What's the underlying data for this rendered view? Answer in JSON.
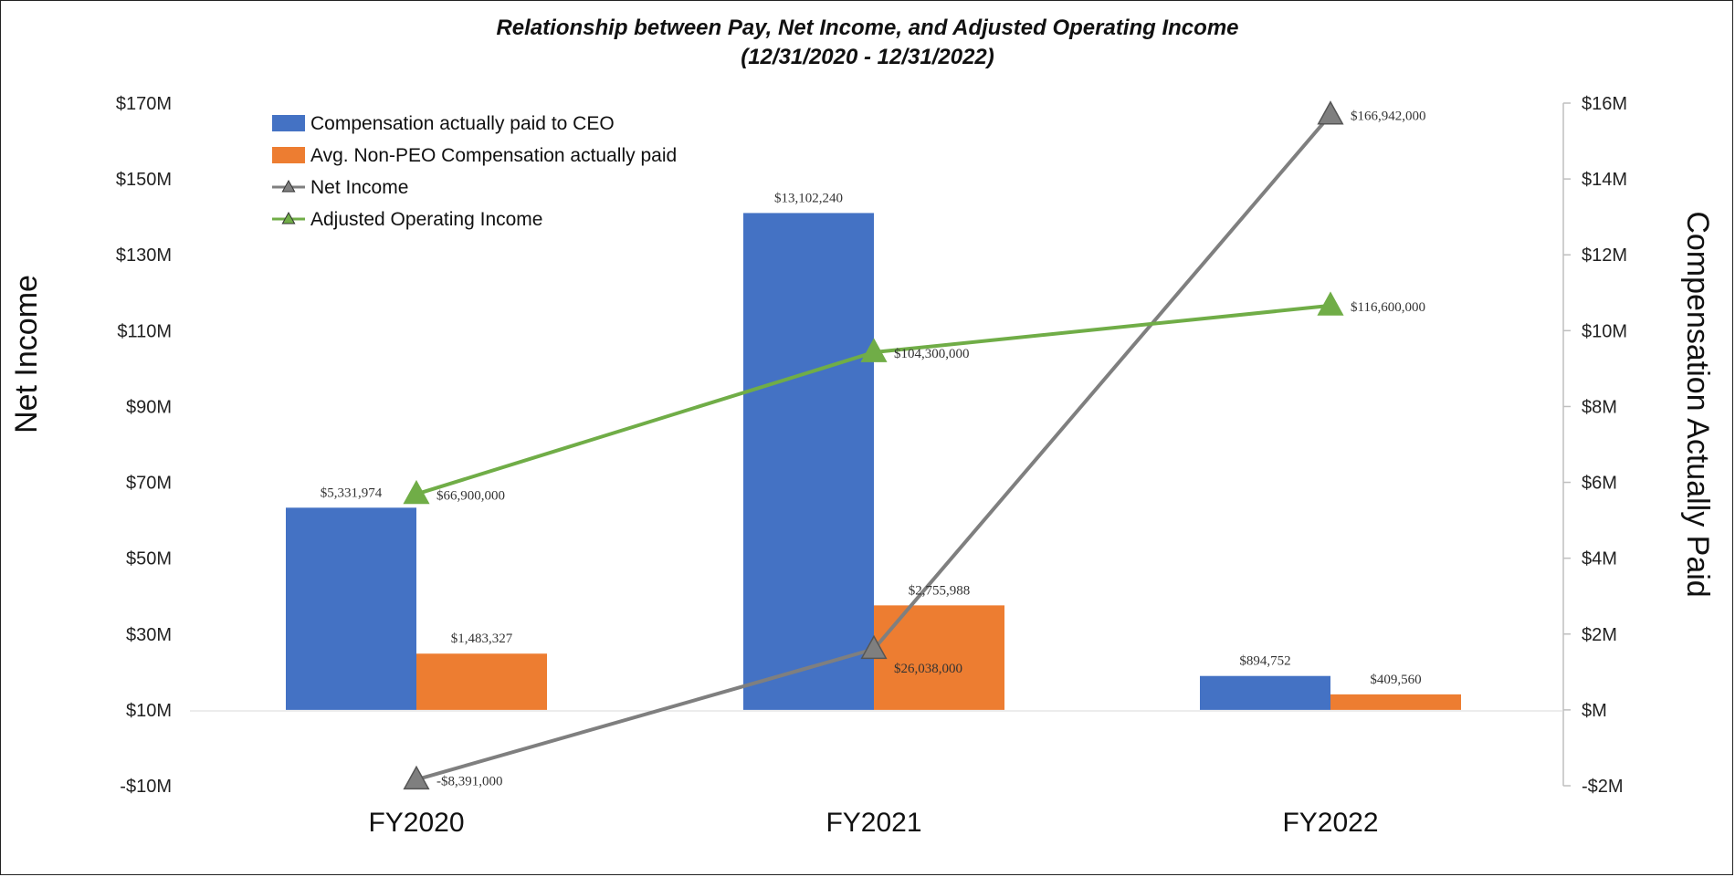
{
  "chart_data": {
    "type": "bar",
    "title": "Relationship between Pay, Net Income, and Adjusted Operating Income",
    "subtitle": "(12/31/2020 - 12/31/2022)",
    "categories": [
      "FY2020",
      "FY2021",
      "FY2022"
    ],
    "y_left": {
      "label": "Net Income",
      "range": [
        -10000000,
        170000000
      ],
      "ticks": [
        -10000000,
        10000000,
        30000000,
        50000000,
        70000000,
        90000000,
        110000000,
        130000000,
        150000000,
        170000000
      ],
      "tick_labels": [
        "-$10M",
        "$10M",
        "$30M",
        "$50M",
        "$70M",
        "$90M",
        "$110M",
        "$130M",
        "$150M",
        "$170M"
      ]
    },
    "y_right": {
      "label": "Compensation Actually Paid",
      "range": [
        -2000000,
        16000000
      ],
      "ticks": [
        -2000000,
        0,
        2000000,
        4000000,
        6000000,
        8000000,
        10000000,
        12000000,
        14000000,
        16000000
      ],
      "tick_labels": [
        "-$2M",
        "$M",
        "$2M",
        "$4M",
        "$6M",
        "$8M",
        "$10M",
        "$12M",
        "$14M",
        "$16M"
      ]
    },
    "series": [
      {
        "name": "Compensation actually paid to CEO",
        "kind": "bar",
        "axis": "right",
        "color": "#4472C4",
        "values": [
          5331974,
          13102240,
          894752
        ],
        "labels": [
          "$5,331,974",
          "$13,102,240",
          "$894,752"
        ]
      },
      {
        "name": "Avg. Non-PEO Compensation actually paid",
        "kind": "bar",
        "axis": "right",
        "color": "#ED7D31",
        "values": [
          1483327,
          2755988,
          409560
        ],
        "labels": [
          "$1,483,327",
          "$2,755,988",
          "$409,560"
        ]
      },
      {
        "name": "Net Income",
        "kind": "line",
        "axis": "left",
        "color": "#7F7F7F",
        "marker": "triangle",
        "values": [
          -8391000,
          26038000,
          166942000
        ],
        "labels": [
          "-$8,391,000",
          "$26,038,000",
          "$166,942,000"
        ]
      },
      {
        "name": "Adjusted Operating Income",
        "kind": "line",
        "axis": "left",
        "color": "#70AD47",
        "marker": "triangle",
        "values": [
          66900000,
          104300000,
          116600000
        ],
        "labels": [
          "$66,900,000",
          "$104,300,000",
          "$116,600,000"
        ]
      }
    ],
    "legend_position": "top-left",
    "grid": false
  }
}
